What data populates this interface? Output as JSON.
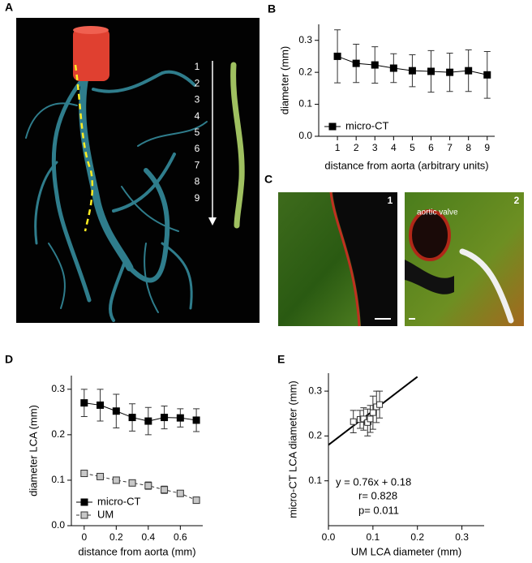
{
  "panels": {
    "A": {
      "label": "A",
      "steps": [
        "1",
        "2",
        "3",
        "4",
        "5",
        "6",
        "7",
        "8",
        "9"
      ]
    },
    "C": {
      "label": "C",
      "images": [
        {
          "label": "1"
        },
        {
          "label": "2",
          "annotation": "aortic valve"
        }
      ]
    }
  },
  "chart_data": [
    {
      "type": "line",
      "panel_label": "B",
      "x_label": "distance from aorta (arbitrary units)",
      "y_label": "diameter (mm)",
      "x": [
        1,
        2,
        3,
        4,
        5,
        6,
        7,
        8,
        9
      ],
      "series": [
        {
          "name": "micro-CT",
          "color": "#000000",
          "marker_fill": "#000000",
          "values": [
            0.25,
            0.228,
            0.223,
            0.213,
            0.205,
            0.203,
            0.2,
            0.205,
            0.192
          ],
          "errors": [
            0.083,
            0.06,
            0.057,
            0.045,
            0.05,
            0.065,
            0.06,
            0.065,
            0.073
          ]
        }
      ],
      "xlim": [
        0,
        9.4
      ],
      "ylim": [
        0,
        0.35
      ],
      "xticks": [
        1,
        2,
        3,
        4,
        5,
        6,
        7,
        8,
        9
      ],
      "yticks": [
        {
          "value": 0,
          "label": "0.0"
        },
        0.1,
        0.2,
        0.3
      ]
    },
    {
      "type": "line",
      "panel_label": "D",
      "x_label": "distance from aorta (mm)",
      "y_label": "diameter LCA (mm)",
      "x": [
        0,
        0.1,
        0.2,
        0.3,
        0.4,
        0.5,
        0.6,
        0.7
      ],
      "series": [
        {
          "name": "micro-CT",
          "color": "#000000",
          "marker_fill": "#000000",
          "line_style": "solid",
          "values": [
            0.27,
            0.265,
            0.252,
            0.238,
            0.23,
            0.238,
            0.237,
            0.232
          ],
          "errors": [
            0.03,
            0.035,
            0.037,
            0.03,
            0.03,
            0.025,
            0.02,
            0.025
          ]
        },
        {
          "name": "UM",
          "color": "#333333",
          "marker_fill": "#c8c8c8",
          "line_style": "dashed",
          "values": [
            0.115,
            0.108,
            0.1,
            0.094,
            0.088,
            0.079,
            0.071,
            0.056
          ],
          "errors": [
            0.005,
            0.005,
            0.005,
            0.005,
            0.008,
            0.008,
            0.006,
            0.005
          ]
        }
      ],
      "xlim": [
        -0.08,
        0.74
      ],
      "ylim": [
        0,
        0.33
      ],
      "xticks": [
        0,
        0.2,
        0.4,
        0.6
      ],
      "yticks": [
        {
          "value": 0,
          "label": "0.0"
        },
        0.1,
        0.2,
        0.3
      ]
    },
    {
      "type": "scatter",
      "panel_label": "E",
      "x_label": "UM LCA diameter (mm)",
      "y_label": "micro-CT LCA diameter (mm)",
      "series": [
        {
          "color": "#333333",
          "marker_fill": "#ffffff",
          "x": [
            0.056,
            0.071,
            0.079,
            0.088,
            0.094,
            0.1,
            0.108,
            0.115
          ],
          "values": [
            0.232,
            0.237,
            0.238,
            0.23,
            0.238,
            0.252,
            0.265,
            0.27
          ],
          "x_errors": [
            0.005,
            0.006,
            0.008,
            0.008,
            0.005,
            0.005,
            0.005,
            0.005
          ],
          "errors": [
            0.025,
            0.02,
            0.025,
            0.03,
            0.03,
            0.037,
            0.035,
            0.03
          ]
        }
      ],
      "fit": {
        "slope": 0.76,
        "intercept": 0.18,
        "x_range": [
          0,
          0.2
        ]
      },
      "annotations": [
        "y = 0.76x + 0.18",
        "r= 0.828",
        "p= 0.011"
      ],
      "xlim": [
        0,
        0.35
      ],
      "ylim": [
        0,
        0.34
      ],
      "xticks": [
        {
          "value": 0,
          "label": "0.0"
        },
        0.1,
        0.2,
        0.3
      ],
      "yticks": [
        0.1,
        0.2,
        0.3
      ]
    }
  ]
}
